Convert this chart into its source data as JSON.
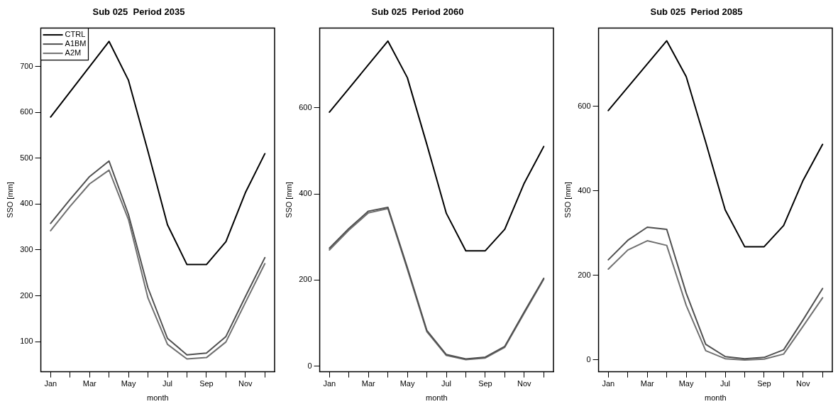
{
  "chart_data": [
    {
      "type": "line",
      "title": "Sub 025  Period 2035",
      "xlabel": "month",
      "ylabel": "SSO [mm]",
      "categories": [
        "Jan",
        null,
        "Mar",
        null,
        "May",
        null,
        "Jul",
        null,
        "Sep",
        null,
        "Nov",
        null
      ],
      "ylim": [
        34,
        784
      ],
      "yticks": [
        100,
        200,
        300,
        400,
        500,
        600,
        700
      ],
      "legend": "top left",
      "marker": "none",
      "line_style": "solid",
      "series": [
        {
          "name": "CTRL",
          "color": "#000000",
          "values": [
            590,
            645,
            700,
            755,
            670,
            515,
            355,
            268,
            268,
            318,
            425,
            510
          ]
        },
        {
          "name": "A1BM",
          "color": "#505050",
          "values": [
            358,
            410,
            460,
            494,
            377,
            217,
            107,
            71,
            75,
            111,
            198,
            283
          ]
        },
        {
          "name": "A2M",
          "color": "#707070",
          "values": [
            342,
            395,
            444,
            474,
            366,
            195,
            94,
            62,
            65,
            99,
            185,
            270
          ]
        }
      ]
    },
    {
      "type": "line",
      "title": "Sub 025  Period 2060",
      "xlabel": "month",
      "ylabel": "SSO [mm]",
      "categories": [
        "Jan",
        null,
        "Mar",
        null,
        "May",
        null,
        "Jul",
        null,
        "Sep",
        null,
        "Nov",
        null
      ],
      "ylim": [
        -13,
        785
      ],
      "yticks": [
        0,
        200,
        400,
        600
      ],
      "marker": "none",
      "line_style": "solid",
      "series": [
        {
          "color": "#000000",
          "values": [
            590,
            645,
            700,
            755,
            670,
            515,
            355,
            268,
            268,
            318,
            425,
            510
          ]
        },
        {
          "color": "#505050",
          "values": [
            274,
            320,
            360,
            369,
            229,
            83,
            27,
            17,
            21,
            46,
            126,
            204
          ]
        },
        {
          "color": "#707070",
          "values": [
            270,
            316,
            356,
            366,
            225,
            80,
            25,
            15,
            19,
            44,
            123,
            202
          ]
        }
      ]
    },
    {
      "type": "line",
      "title": "Sub 025  Period 2085",
      "xlabel": "month",
      "ylabel": "SSO [mm]",
      "categories": [
        "Jan",
        null,
        "Mar",
        null,
        "May",
        null,
        "Jul",
        null,
        "Sep",
        null,
        "Nov",
        null
      ],
      "ylim": [
        -28,
        785
      ],
      "yticks": [
        0,
        200,
        400,
        600
      ],
      "marker": "none",
      "line_style": "solid",
      "series": [
        {
          "color": "#000000",
          "values": [
            590,
            645,
            700,
            755,
            670,
            515,
            355,
            268,
            268,
            318,
            425,
            510
          ]
        },
        {
          "color": "#505050",
          "values": [
            237,
            283,
            314,
            309,
            158,
            37,
            8,
            3,
            6,
            24,
            95,
            169
          ]
        },
        {
          "color": "#707070",
          "values": [
            215,
            260,
            282,
            271,
            129,
            22,
            3,
            0,
            2,
            14,
            80,
            147
          ]
        }
      ]
    }
  ]
}
